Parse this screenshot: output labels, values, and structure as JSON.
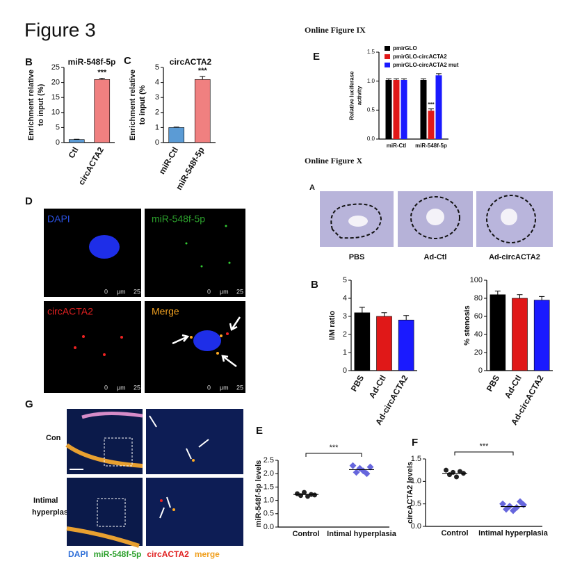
{
  "figure_title": "Figure 3",
  "online_ix": "Online Figure IX",
  "online_x": "Online Figure X",
  "panels": {
    "D": {
      "label": "D",
      "channels": [
        "DAPI",
        "miR-548f-5p",
        "circACTA2",
        "Merge"
      ],
      "scale": [
        "0",
        "μm",
        "25"
      ]
    },
    "A": {
      "label": "A",
      "groups": [
        "PBS",
        "Ad-Ctl",
        "Ad-circACTA2"
      ]
    },
    "G": {
      "label": "G",
      "row_con": "Con",
      "row_ih": [
        "Intimal",
        "hyperplasia"
      ],
      "legend": [
        {
          "text": "DAPI",
          "color": "#2f6fd8"
        },
        {
          "text": "miR-548f-5p",
          "color": "#2ca02c"
        },
        {
          "text": "circACTA2",
          "color": "#e02020"
        },
        {
          "text": "merge",
          "color": "#f0a020"
        }
      ]
    }
  },
  "chart_data": [
    {
      "type": "bar",
      "panel": "B",
      "title": "miR-548f-5p",
      "y_label": [
        "Enrichment relative",
        "to input (%)"
      ],
      "categories": [
        "Ctl",
        "circACTA2"
      ],
      "values": [
        1,
        21
      ],
      "errors": [
        0.1,
        0.4
      ],
      "colors": [
        "#5b9bd5",
        "#f08080"
      ],
      "ylim": [
        0,
        25
      ],
      "yticks": [
        0,
        5,
        10,
        15,
        20,
        25
      ],
      "annotation": "***"
    },
    {
      "type": "bar",
      "panel": "C",
      "title": "circACTA2",
      "y_label": [
        "Enrichment relative",
        "to input (%"
      ],
      "categories": [
        "miR-Ctl",
        "miR-548f-5p"
      ],
      "values": [
        1.0,
        4.2
      ],
      "errors": [
        0.03,
        0.2
      ],
      "colors": [
        "#5b9bd5",
        "#f08080"
      ],
      "ylim": [
        0,
        5
      ],
      "yticks": [
        0,
        1,
        2,
        3,
        4,
        5
      ],
      "annotation": "***"
    },
    {
      "type": "grouped",
      "panel": "E",
      "y_label": [
        "Relative luciferase",
        "activity"
      ],
      "categories": [
        "miR-Ctl",
        "miR-548f-5p"
      ],
      "series": [
        {
          "name": "pmirGLO",
          "color": "#000000",
          "values": [
            1.02,
            1.02
          ],
          "errors": [
            0.02,
            0.02
          ]
        },
        {
          "name": "pmirGLO-circACTA2",
          "color": "#e01818",
          "values": [
            1.02,
            0.49
          ],
          "errors": [
            0.02,
            0.03
          ]
        },
        {
          "name": "pmirGLO-circACTA2 mut",
          "color": "#1a1aff",
          "values": [
            1.02,
            1.1
          ],
          "errors": [
            0.02,
            0.03
          ]
        }
      ],
      "ylim": [
        0,
        1.5
      ],
      "yticks": [
        {
          "value": 0,
          "label": "0.0"
        },
        {
          "value": 0.5,
          "label": "0.5"
        },
        {
          "value": 1,
          "label": "1.0"
        },
        {
          "value": 1.5,
          "label": "1.5"
        }
      ],
      "annotation": "***"
    },
    {
      "type": "bar",
      "panel": "B",
      "y_label": [
        "I/M ratio"
      ],
      "categories": [
        "PBS",
        "Ad-Ctl",
        "Ad-circACTA2"
      ],
      "values": [
        3.2,
        3.0,
        2.8
      ],
      "errors": [
        0.3,
        0.2,
        0.25
      ],
      "colors": [
        "#000000",
        "#e01818",
        "#1a1aff"
      ],
      "ylim": [
        0,
        5
      ],
      "yticks": [
        0,
        1,
        2,
        3,
        4,
        5
      ]
    },
    {
      "type": "bar",
      "y_label": [
        "% stenosis"
      ],
      "categories": [
        "PBS",
        "Ad-Ctl",
        "Ad-circACTA2"
      ],
      "values": [
        84,
        80,
        78
      ],
      "errors": [
        4,
        4,
        4
      ],
      "colors": [
        "#000000",
        "#e01818",
        "#1a1aff"
      ],
      "ylim": [
        0,
        100
      ],
      "yticks": [
        0,
        20,
        40,
        60,
        80,
        100
      ]
    },
    {
      "type": "dot",
      "panel": "E",
      "y_label": [
        "miR-548f-5p levels"
      ],
      "categories": [
        "Control",
        "Intimal hyperplasia"
      ],
      "points": [
        [
          1.25,
          1.18,
          1.3,
          1.15,
          1.22,
          1.2
        ],
        [
          2.3,
          2.05,
          2.2,
          2.1,
          2.0,
          2.25
        ]
      ],
      "means": [
        1.22,
        2.15
      ],
      "colors": [
        "#222222",
        "#6666dd"
      ],
      "ylim": [
        0,
        2.5
      ],
      "yticks": [
        {
          "value": 0,
          "label": "0.0"
        },
        {
          "value": 0.5,
          "label": "0.5"
        },
        {
          "value": 1,
          "label": "1.0"
        },
        {
          "value": 1.5,
          "label": "1.5"
        },
        {
          "value": 2,
          "label": "2.0"
        },
        {
          "value": 2.5,
          "label": "2.5"
        }
      ],
      "annotation": "***"
    },
    {
      "type": "dot",
      "panel": "F",
      "y_label": [
        "circACTA2 levels"
      ],
      "categories": [
        "Control",
        "Intimal hyperplasia"
      ],
      "points": [
        [
          1.25,
          1.15,
          1.2,
          1.1,
          1.22,
          1.18
        ],
        [
          0.5,
          0.38,
          0.45,
          0.35,
          0.42,
          0.55,
          0.48
        ]
      ],
      "means": [
        1.18,
        0.44
      ],
      "colors": [
        "#222222",
        "#6666dd"
      ],
      "ylim": [
        0,
        1.5
      ],
      "yticks": [
        {
          "value": 0,
          "label": "0.0"
        },
        {
          "value": 0.5,
          "label": "0.5"
        },
        {
          "value": 1,
          "label": "1.0"
        },
        {
          "value": 1.5,
          "label": "1.5"
        }
      ],
      "annotation": "***"
    }
  ]
}
